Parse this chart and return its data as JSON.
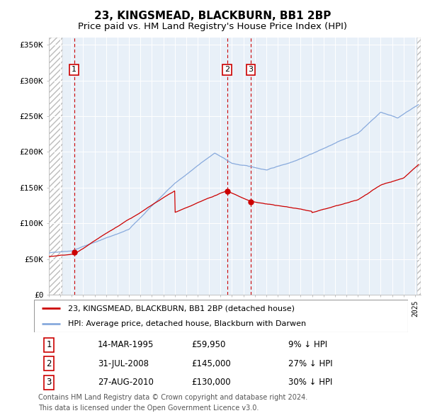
{
  "title": "23, KINGSMEAD, BLACKBURN, BB1 2BP",
  "subtitle": "Price paid vs. HM Land Registry's House Price Index (HPI)",
  "title_fontsize": 11,
  "subtitle_fontsize": 9.5,
  "ylabel_ticks": [
    "£0",
    "£50K",
    "£100K",
    "£150K",
    "£200K",
    "£250K",
    "£300K",
    "£350K"
  ],
  "ytick_values": [
    0,
    50000,
    100000,
    150000,
    200000,
    250000,
    300000,
    350000
  ],
  "ylim": [
    0,
    360000
  ],
  "xlim_start": 1993.0,
  "xlim_end": 2025.5,
  "sale_dates": [
    1995.2,
    2008.58,
    2010.65
  ],
  "sale_prices": [
    59950,
    145000,
    130000
  ],
  "sale_labels": [
    "1",
    "2",
    "3"
  ],
  "dashed_line_dates": [
    1995.2,
    2008.58,
    2010.65
  ],
  "legend_line1": "23, KINGSMEAD, BLACKBURN, BB1 2BP (detached house)",
  "legend_line2": "HPI: Average price, detached house, Blackburn with Darwen",
  "table_rows": [
    [
      "1",
      "14-MAR-1995",
      "£59,950",
      "9% ↓ HPI"
    ],
    [
      "2",
      "31-JUL-2008",
      "£145,000",
      "27% ↓ HPI"
    ],
    [
      "3",
      "27-AUG-2010",
      "£130,000",
      "30% ↓ HPI"
    ]
  ],
  "footnote1": "Contains HM Land Registry data © Crown copyright and database right 2024.",
  "footnote2": "This data is licensed under the Open Government Licence v3.0.",
  "hpi_line_color": "#88aadd",
  "sale_line_color": "#cc0000",
  "dashed_color": "#cc0000",
  "plot_bg_color": "#e8f0f8",
  "hatch_color": "#cccccc"
}
